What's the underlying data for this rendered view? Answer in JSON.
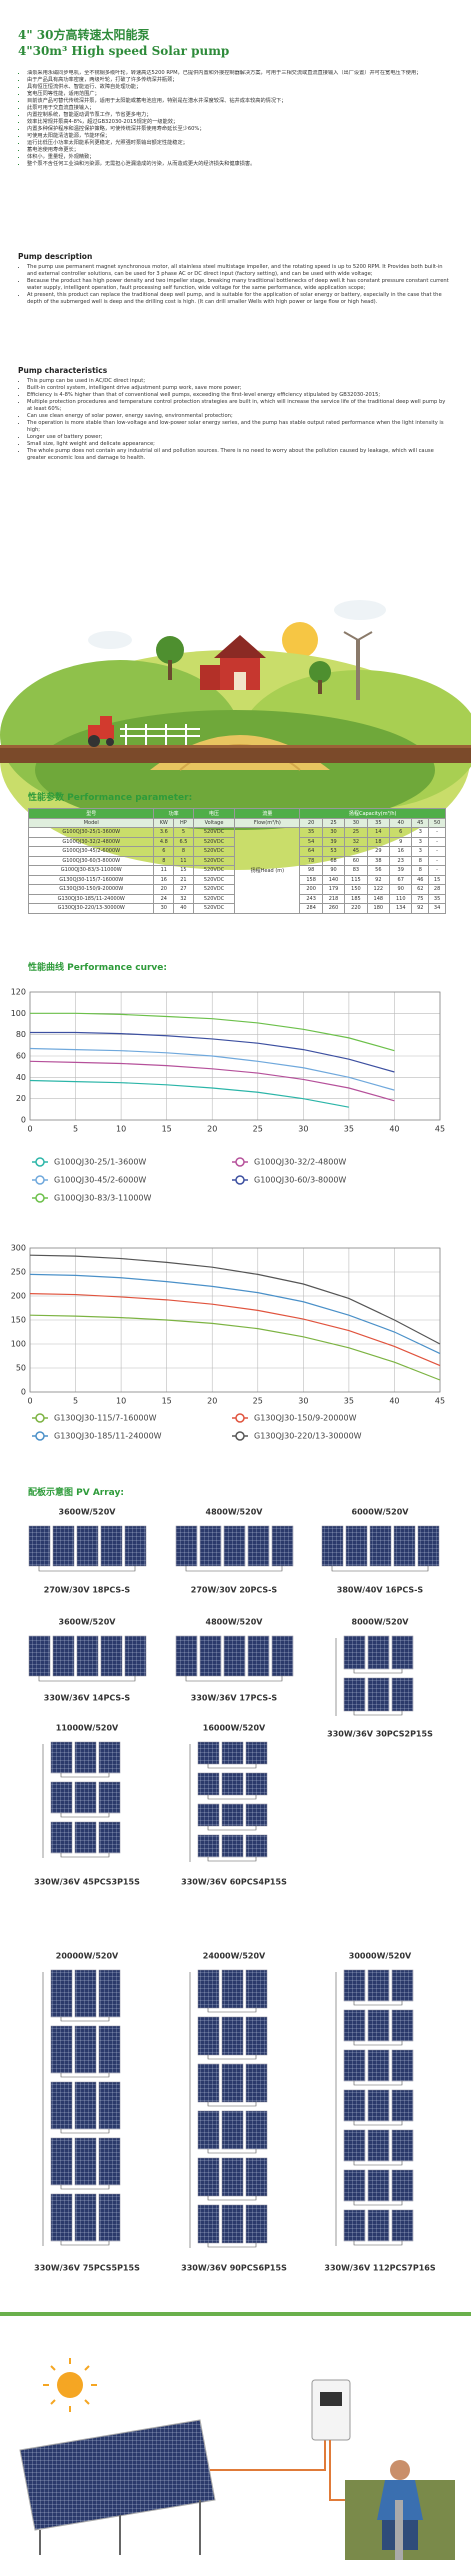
{
  "header": {
    "title_cn": "4\" 30方高转速太阳能泵",
    "title_en": "4\"30m³ High speed Solar pump"
  },
  "intro_cn": [
    "油泵采用永磁同步电机，全不锈钢多级叶轮，转速高达5200 RPM，已提供内置和外接控制器解决方案，可用于三相交流或直流直接输入（出厂设置）并可在宽电压下使用；",
    "由于产品具有高功率密度，两级叶轮，打破了许多传统深井瓶颈；",
    "具有恒压恒流供水、智能运行、故障自处理功能；",
    "宽电压同等性能，适用范围广；",
    "目前该产品可替代传统深井泵，适用于太阳能或蓄电池应用，特别是在潜水井深度较深、钻井成本较高的情况下；",
    "此泵可用于交直流直接输入；",
    "内置控制系统，智能驱动调节泵工作，节省更多电力；",
    "效率比常规井泵高4-8%，超过GB32030-2015规定的一级能效；",
    "内置多种保护程序和温控保护策略，可使传统深井泵使用寿命延长至少60%；",
    "可使用太阳能清洁能源，节能环保；",
    "运行比低压小功率太阳能系列更稳定，光照强时泵输出额定性能稳定；",
    "蓄电池使用寿命更长；",
    "体积小，重量轻，外观精致；",
    "整个泵不含任何工业油和污染源，无需担心泄漏造成的污染，从而造成更大的经济损失和健康损害。"
  ],
  "description": {
    "heading": "Pump description",
    "paragraphs": [
      "The pump use permanent magnet synchronous motor, all stainless steel multistage impeller, and the rotating speed is up to 5200 RPM. It Provides both built-in and external controller solutions, can be used for 3 phase AC or DC direct input (factory setting), and can be used with wide voltage;",
      "Because the product has high power density and two impeller stage, breaking many traditional bottlenecks of deep well.It has constant pressure constant current water supply, intelligent operation, fault processing self function, wide voltage for the same performance, wide application scope;",
      "At present, this product can replace the traditional deep well pump, and is suitable for the application of solar energy or battery, especially in the case that the depth of the submerged well is deep and the drilling cost is high. (It can drill smaller Wells with high power or large flow or high head)."
    ]
  },
  "characteristics": {
    "heading": "Pump characteristics",
    "items": [
      "This pump can be used in AC/DC direct input;",
      "Built-in control system, intelligent drive adjustment pump work, save more power;",
      "Efficiency is 4-8% higher than that of conventional well pumps, exceeding the first-level energy efficiency stipulated by GB32030-2015;",
      "Multiple protection procedures and temperature control protection strategies are built in, which will increase the service life of the traditional deep well pump by at least 60%;",
      "Can use clean energy of solar power, energy saving, environmental protection;",
      "The operation is more stable than low-voltage and low-power solar energy series, and the pump has stable output rated performance when the light intensity is high;",
      "Longer use of battery power;",
      "Small size, light weight and delicate appearance;",
      "The whole pump does not contain any industrial oil and pollution sources. There is no need to worry about the pollution caused by leakage, which will cause greater economic loss and damage to health."
    ]
  },
  "performance_parameter": {
    "heading": "性能参数 Performance parameter:",
    "table": {
      "header": [
        "型号",
        "功率",
        "电压",
        "流量",
        "扬程Capacity(m³/h)"
      ],
      "subheader": [
        "Model",
        "KW",
        "HP",
        "Voltage",
        "Flow(m³/h)",
        "20",
        "25",
        "30",
        "35",
        "40",
        "45",
        "50"
      ],
      "head_label": "扬程Head (m)",
      "rows": [
        [
          "G100QJ30-25/1-3600W",
          "3.6",
          "5",
          "520VDC",
          "35",
          "30",
          "25",
          "14",
          "6",
          "3",
          "-"
        ],
        [
          "G100QJ30-32/2-4800W",
          "4.8",
          "6.5",
          "520VDC",
          "54",
          "39",
          "32",
          "18",
          "9",
          "3",
          "-"
        ],
        [
          "G100QJ30-45/2-6000W",
          "6",
          "8",
          "520VDC",
          "64",
          "53",
          "45",
          "29",
          "16",
          "3",
          "-"
        ],
        [
          "G100QJ30-60/3-8000W",
          "8",
          "11",
          "520VDC",
          "78",
          "68",
          "60",
          "38",
          "23",
          "8",
          "-"
        ],
        [
          "G100QJ30-83/3-11000W",
          "11",
          "15",
          "520VDC",
          "98",
          "90",
          "83",
          "56",
          "39",
          "8",
          "-"
        ],
        [
          "G130QJ30-115/7-16000W",
          "16",
          "21",
          "520VDC",
          "158",
          "140",
          "115",
          "92",
          "67",
          "46",
          "15"
        ],
        [
          "G130QJ30-150/9-20000W",
          "20",
          "27",
          "520VDC",
          "200",
          "179",
          "150",
          "122",
          "90",
          "62",
          "28"
        ],
        [
          "G130QJ30-185/11-24000W",
          "24",
          "32",
          "520VDC",
          "243",
          "218",
          "185",
          "148",
          "110",
          "75",
          "35"
        ],
        [
          "G130QJ30-220/13-30000W",
          "30",
          "40",
          "520VDC",
          "284",
          "260",
          "220",
          "180",
          "134",
          "92",
          "34"
        ]
      ]
    }
  },
  "performance_curve": {
    "heading": "性能曲线 Performance curve:"
  },
  "chart_data": [
    {
      "type": "line",
      "x": [
        0,
        5,
        10,
        15,
        20,
        25,
        30,
        35,
        40,
        45
      ],
      "xlim": [
        0,
        45
      ],
      "ylim": [
        0,
        120
      ],
      "xticks": [
        0,
        5,
        10,
        15,
        20,
        25,
        30,
        35,
        40,
        45
      ],
      "yticks": [
        0,
        20,
        40,
        60,
        80,
        100,
        120
      ],
      "grid": true,
      "series": [
        {
          "name": "G100QJ30-25/1-3600W",
          "color": "#2bb5a8",
          "values": [
            37,
            36,
            35,
            33,
            30,
            26,
            20,
            12,
            null,
            null
          ]
        },
        {
          "name": "G100QJ30-32/2-4800W",
          "color": "#b5509a",
          "values": [
            55,
            54,
            53,
            51,
            48,
            44,
            38,
            30,
            18,
            null
          ]
        },
        {
          "name": "G100QJ30-45/2-6000W",
          "color": "#6fa8dc",
          "values": [
            67,
            66,
            65,
            63,
            60,
            55,
            49,
            40,
            28,
            null
          ]
        },
        {
          "name": "G100QJ30-60/3-8000W",
          "color": "#3c4fa0",
          "values": [
            82,
            82,
            81,
            79,
            76,
            72,
            66,
            57,
            45,
            null
          ]
        },
        {
          "name": "G100QJ30-83/3-11000W",
          "color": "#6cc04a",
          "values": [
            100,
            100,
            99,
            97,
            95,
            91,
            85,
            77,
            65,
            null
          ]
        }
      ]
    },
    {
      "type": "line",
      "x": [
        0,
        5,
        10,
        15,
        20,
        25,
        30,
        35,
        40,
        45
      ],
      "xlim": [
        0,
        45
      ],
      "ylim": [
        0,
        300
      ],
      "xticks": [
        0,
        5,
        10,
        15,
        20,
        25,
        30,
        35,
        40,
        45
      ],
      "yticks": [
        0,
        50,
        100,
        150,
        200,
        250,
        300
      ],
      "grid": true,
      "series": [
        {
          "name": "G130QJ30-115/7-16000W",
          "color": "#7cb342",
          "values": [
            160,
            158,
            155,
            150,
            143,
            132,
            115,
            92,
            62,
            25
          ]
        },
        {
          "name": "G130QJ30-150/9-20000W",
          "color": "#e0533d",
          "values": [
            205,
            203,
            198,
            192,
            183,
            170,
            152,
            128,
            95,
            55
          ]
        },
        {
          "name": "G130QJ30-185/11-24000W",
          "color": "#4a90c8",
          "values": [
            245,
            243,
            238,
            230,
            220,
            207,
            188,
            160,
            125,
            80
          ]
        },
        {
          "name": "G130QJ30-220/13-30000W",
          "color": "#555555",
          "values": [
            285,
            283,
            278,
            270,
            260,
            245,
            225,
            195,
            150,
            100
          ]
        }
      ]
    }
  ],
  "pv_array": {
    "heading": "配板示意图 PV Array:",
    "items": [
      {
        "power": "3600W/520V",
        "config": "270W/30V 18PCS-S"
      },
      {
        "power": "4800W/520V",
        "config": "270W/30V 20PCS-S"
      },
      {
        "power": "6000W/520V",
        "config": "380W/40V 16PCS-S"
      },
      {
        "power": "3600W/520V",
        "config": "330W/36V 14PCS-S"
      },
      {
        "power": "4800W/520V",
        "config": "330W/36V 17PCS-S"
      },
      {
        "power": "8000W/520V",
        "config": "330W/36V 30PCS2P15S"
      },
      {
        "power": "11000W/520V",
        "config": "330W/36V 45PCS3P15S"
      },
      {
        "power": "16000W/520V",
        "config": "330W/36V 60PCS4P15S"
      },
      {
        "power": "20000W/520V",
        "config": "330W/36V 75PCS5P15S"
      },
      {
        "power": "24000W/520V",
        "config": "330W/36V 90PCS6P15S"
      },
      {
        "power": "30000W/520V",
        "config": "330W/36V 112PCS7P16S"
      }
    ]
  }
}
